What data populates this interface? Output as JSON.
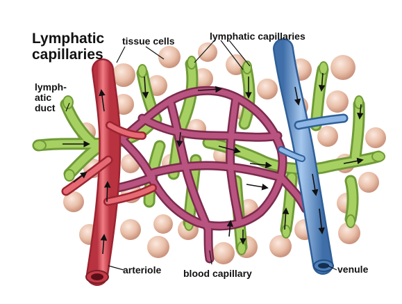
{
  "title": {
    "line1": "Lymphatic",
    "line2": "capillaries"
  },
  "labels": {
    "tissue_cells": "tissue cells",
    "lymphatic_capillaries": "lymphatic capillaries",
    "lymphatic_duct_1": "lymph-",
    "lymphatic_duct_2": "atic",
    "lymphatic_duct_3": "duct",
    "arteriole": "arteriole",
    "blood_capillary": "blood capillary",
    "venule": "venule"
  },
  "colors": {
    "arteriole": "#d9545f",
    "blood_capillary": "#a83f6a",
    "venule": "#6f9fd2",
    "lymphatic": "#9cc65a",
    "tissue_cell": "#e9c2ad"
  }
}
